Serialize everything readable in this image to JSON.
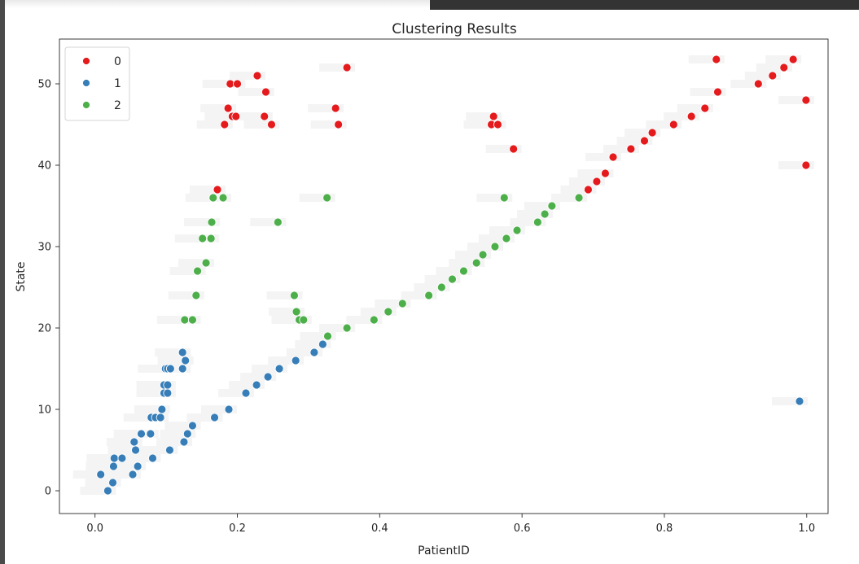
{
  "colors": {
    "cluster_0": "#e41a1c",
    "cluster_1": "#377eb8",
    "cluster_2": "#4daf4a",
    "axes": "#262626",
    "top_bar": "#333333",
    "left_strip": "#4a4a4a"
  },
  "chart_data": {
    "type": "scatter",
    "title": "Clustering Results",
    "xlabel": "PatientID",
    "ylabel": "State",
    "xlim": [
      -0.05,
      1.03
    ],
    "ylim": [
      -2.8,
      55.5
    ],
    "xticks": [
      0.0,
      0.2,
      0.4,
      0.6,
      0.8,
      1.0
    ],
    "xtick_labels": [
      "0.0",
      "0.2",
      "0.4",
      "0.6",
      "0.8",
      "1.0"
    ],
    "yticks": [
      0,
      10,
      20,
      30,
      40,
      50
    ],
    "ytick_labels": [
      "0",
      "10",
      "20",
      "30",
      "40",
      "50"
    ],
    "grid": false,
    "legend_position": "top-left",
    "series": [
      {
        "name": "0",
        "color": "#e41a1c",
        "points": [
          [
            0.172,
            37
          ],
          [
            0.182,
            45
          ],
          [
            0.187,
            47
          ],
          [
            0.19,
            50
          ],
          [
            0.193,
            46
          ],
          [
            0.198,
            46
          ],
          [
            0.2,
            50
          ],
          [
            0.228,
            51
          ],
          [
            0.238,
            46
          ],
          [
            0.24,
            49
          ],
          [
            0.248,
            45
          ],
          [
            0.338,
            47
          ],
          [
            0.342,
            45
          ],
          [
            0.354,
            52
          ],
          [
            0.557,
            45
          ],
          [
            0.56,
            46
          ],
          [
            0.566,
            45
          ],
          [
            0.588,
            42
          ],
          [
            0.693,
            37
          ],
          [
            0.705,
            38
          ],
          [
            0.717,
            39
          ],
          [
            0.728,
            41
          ],
          [
            0.753,
            42
          ],
          [
            0.772,
            43
          ],
          [
            0.783,
            44
          ],
          [
            0.813,
            45
          ],
          [
            0.838,
            46
          ],
          [
            0.857,
            47
          ],
          [
            0.873,
            53
          ],
          [
            0.875,
            49
          ],
          [
            0.932,
            50
          ],
          [
            0.952,
            51
          ],
          [
            0.968,
            52
          ],
          [
            0.981,
            53
          ],
          [
            0.999,
            48
          ],
          [
            0.999,
            40
          ]
        ]
      },
      {
        "name": "1",
        "color": "#377eb8",
        "points": [
          [
            0.008,
            2
          ],
          [
            0.018,
            0
          ],
          [
            0.025,
            1
          ],
          [
            0.026,
            3
          ],
          [
            0.027,
            4
          ],
          [
            0.038,
            4
          ],
          [
            0.053,
            2
          ],
          [
            0.055,
            6
          ],
          [
            0.057,
            5
          ],
          [
            0.06,
            3
          ],
          [
            0.065,
            7
          ],
          [
            0.078,
            7
          ],
          [
            0.079,
            9
          ],
          [
            0.081,
            4
          ],
          [
            0.085,
            9
          ],
          [
            0.092,
            9
          ],
          [
            0.094,
            10
          ],
          [
            0.097,
            12
          ],
          [
            0.097,
            13
          ],
          [
            0.099,
            15
          ],
          [
            0.102,
            13
          ],
          [
            0.102,
            12
          ],
          [
            0.102,
            15
          ],
          [
            0.105,
            5
          ],
          [
            0.106,
            15
          ],
          [
            0.123,
            17
          ],
          [
            0.123,
            15
          ],
          [
            0.125,
            6
          ],
          [
            0.127,
            16
          ],
          [
            0.13,
            7
          ],
          [
            0.137,
            8
          ],
          [
            0.168,
            9
          ],
          [
            0.188,
            10
          ],
          [
            0.212,
            12
          ],
          [
            0.227,
            13
          ],
          [
            0.243,
            14
          ],
          [
            0.259,
            15
          ],
          [
            0.282,
            16
          ],
          [
            0.308,
            17
          ],
          [
            0.32,
            18
          ],
          [
            0.99,
            11
          ]
        ]
      },
      {
        "name": "2",
        "color": "#4daf4a",
        "points": [
          [
            0.126,
            21
          ],
          [
            0.137,
            21
          ],
          [
            0.142,
            24
          ],
          [
            0.144,
            27
          ],
          [
            0.151,
            31
          ],
          [
            0.156,
            28
          ],
          [
            0.163,
            31
          ],
          [
            0.164,
            33
          ],
          [
            0.166,
            36
          ],
          [
            0.18,
            36
          ],
          [
            0.257,
            33
          ],
          [
            0.28,
            24
          ],
          [
            0.283,
            22
          ],
          [
            0.287,
            21
          ],
          [
            0.293,
            21
          ],
          [
            0.326,
            36
          ],
          [
            0.327,
            19
          ],
          [
            0.354,
            20
          ],
          [
            0.392,
            21
          ],
          [
            0.412,
            22
          ],
          [
            0.432,
            23
          ],
          [
            0.469,
            24
          ],
          [
            0.487,
            25
          ],
          [
            0.502,
            26
          ],
          [
            0.518,
            27
          ],
          [
            0.536,
            28
          ],
          [
            0.545,
            29
          ],
          [
            0.562,
            30
          ],
          [
            0.575,
            36
          ],
          [
            0.578,
            31
          ],
          [
            0.593,
            32
          ],
          [
            0.622,
            33
          ],
          [
            0.632,
            34
          ],
          [
            0.642,
            35
          ],
          [
            0.68,
            36
          ]
        ]
      }
    ]
  }
}
